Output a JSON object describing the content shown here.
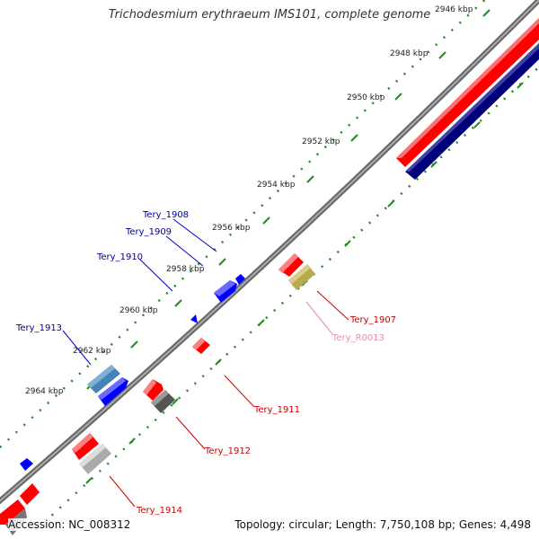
{
  "title": "Trichodesmium erythraeum IMS101, complete genome",
  "footer": {
    "accession": "Accession: NC_008312",
    "summary": "Topology: circular; Length: 7,750,108 bp; Genes: 4,498"
  },
  "colors": {
    "forward_gene": "#ff0000",
    "reverse_gene": "#0000ff",
    "forward_label": "#cc0000",
    "reverse_label": "#000099",
    "rrna_pink": "#ee88aa",
    "tick_green": "#228822",
    "backbone": "#888888"
  },
  "ticks": [
    "2946 kbp",
    "2948 kbp",
    "2950 kbp",
    "2952 kbp",
    "2954 kbp",
    "2956 kbp",
    "2958 kbp",
    "2960 kbp",
    "2962 kbp",
    "2964 kbp"
  ],
  "gene_labels": [
    {
      "text": "Tery_1908",
      "strand": "reverse"
    },
    {
      "text": "Tery_1909",
      "strand": "reverse"
    },
    {
      "text": "Tery_1910",
      "strand": "reverse"
    },
    {
      "text": "Tery_1913",
      "strand": "reverse"
    },
    {
      "text": "Tery_1907",
      "strand": "forward"
    },
    {
      "text": "Tery_R0013",
      "strand": "rrna"
    },
    {
      "text": "Tery_1911",
      "strand": "forward"
    },
    {
      "text": "Tery_1912",
      "strand": "forward"
    },
    {
      "text": "Tery_1914",
      "strand": "forward"
    }
  ]
}
